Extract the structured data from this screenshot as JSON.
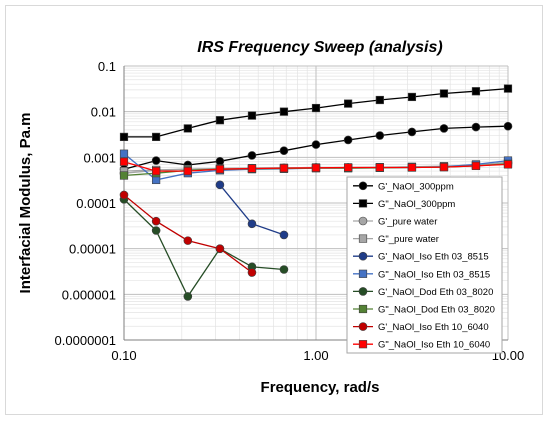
{
  "chart_data": {
    "type": "scatter",
    "title": "IRS Frequency Sweep (analysis)",
    "xlabel": "Frequency, rad/s",
    "ylabel": "Interfacial Modulus, Pa.m",
    "x_scale": "log",
    "y_scale": "log",
    "xlim": [
      0.1,
      10
    ],
    "ylim": [
      1e-07,
      0.1
    ],
    "x_ticks": [
      "0.10",
      "1.00",
      "10.00"
    ],
    "y_ticks": [
      "0.1",
      "0.01",
      "0.001",
      "0.0001",
      "0.00001",
      "0.000001",
      "0.0000001"
    ],
    "grid": true,
    "legend_position": "right-inside",
    "series": [
      {
        "name": "G'_NaOl_300ppm",
        "color": "#000000",
        "marker": "circle",
        "x": [
          0.1,
          0.147,
          0.215,
          0.316,
          0.464,
          0.681,
          1.0,
          1.47,
          2.15,
          3.16,
          4.64,
          6.81,
          10.0
        ],
        "y": [
          0.00055,
          0.00085,
          0.00068,
          0.00082,
          0.0011,
          0.0014,
          0.0019,
          0.0024,
          0.003,
          0.0036,
          0.0043,
          0.0046,
          0.0048
        ]
      },
      {
        "name": "G\"_NaOl_300ppm",
        "color": "#000000",
        "marker": "square",
        "x": [
          0.1,
          0.147,
          0.215,
          0.316,
          0.464,
          0.681,
          1.0,
          1.47,
          2.15,
          3.16,
          4.64,
          6.81,
          10.0
        ],
        "y": [
          0.0028,
          0.0028,
          0.0043,
          0.0065,
          0.0082,
          0.01,
          0.012,
          0.015,
          0.018,
          0.021,
          0.025,
          0.028,
          0.032
        ]
      },
      {
        "name": "G'_pure water",
        "color": "#a6a6a6",
        "marker": "circle",
        "x": [
          0.1,
          0.147,
          0.215,
          0.316,
          0.464,
          0.681,
          1.0,
          1.47,
          2.15,
          3.16,
          4.64,
          6.81,
          10.0
        ],
        "y": [
          0.00045,
          0.00052,
          0.00055,
          0.00057,
          0.00058,
          0.00059,
          0.0006,
          0.0006,
          0.0006,
          0.00061,
          0.00062,
          0.00066,
          0.00075
        ]
      },
      {
        "name": "G\"_pure water",
        "color": "#a6a6a6",
        "marker": "square",
        "x": [
          0.1,
          0.147,
          0.215,
          0.316,
          0.464,
          0.681,
          1.0,
          1.47,
          2.15,
          3.16,
          4.64,
          6.81,
          10.0
        ],
        "y": [
          0.0005,
          0.00053,
          0.00055,
          0.00057,
          0.00058,
          0.00059,
          0.0006,
          0.0006,
          0.00061,
          0.00062,
          0.00064,
          0.00068,
          0.00078
        ]
      },
      {
        "name": "G'_NaOl_Iso Eth 03_8515",
        "color": "#1f3c88",
        "marker": "circle",
        "x": [
          0.316,
          0.464,
          0.681
        ],
        "y": [
          0.00025,
          3.5e-05,
          2e-05
        ]
      },
      {
        "name": "G\"_NaOl_Iso Eth 03_8515",
        "color": "#4472c4",
        "marker": "square",
        "x": [
          0.1,
          0.147,
          0.215,
          0.316,
          0.464,
          0.681,
          1.0,
          1.47,
          2.15,
          3.16,
          4.64,
          6.81,
          10.0
        ],
        "y": [
          0.0012,
          0.00032,
          0.00045,
          0.00052,
          0.00055,
          0.00056,
          0.00058,
          0.00058,
          0.00059,
          0.0006,
          0.00062,
          0.0007,
          0.00085
        ]
      },
      {
        "name": "G'_NaOl_Dod Eth 03_8020",
        "color": "#264d26",
        "marker": "circle",
        "x": [
          0.1,
          0.147,
          0.215,
          0.316,
          0.464,
          0.681
        ],
        "y": [
          0.00012,
          2.5e-05,
          9e-07,
          1e-05,
          4e-06,
          3.5e-06
        ]
      },
      {
        "name": "G\"_NaOl_Dod Eth 03_8020",
        "color": "#548235",
        "marker": "square",
        "x": [
          0.1,
          0.147,
          0.215,
          0.316,
          0.464,
          0.681,
          1.0,
          1.47,
          2.15,
          3.16,
          4.64,
          6.81,
          10.0
        ],
        "y": [
          0.0004,
          0.00045,
          0.00052,
          0.00055,
          0.00056,
          0.00057,
          0.00058,
          0.00058,
          0.00059,
          0.0006,
          0.00061,
          0.00065,
          0.00072
        ]
      },
      {
        "name": "G'_NaOl_Iso Eth 10_6040",
        "color": "#c00000",
        "marker": "circle",
        "x": [
          0.1,
          0.147,
          0.215,
          0.316,
          0.464
        ],
        "y": [
          0.00015,
          4e-05,
          1.5e-05,
          1e-05,
          3e-06
        ]
      },
      {
        "name": "G\"_NaOl_Iso Eth 10_6040",
        "color": "#ff0000",
        "marker": "square",
        "x": [
          0.1,
          0.147,
          0.215,
          0.316,
          0.464,
          0.681,
          1.0,
          1.47,
          2.15,
          3.16,
          4.64,
          6.81,
          10.0
        ],
        "y": [
          0.0008,
          0.0005,
          0.0005,
          0.00055,
          0.00057,
          0.00058,
          0.00059,
          0.0006,
          0.0006,
          0.0006,
          0.00061,
          0.00065,
          0.0007
        ]
      }
    ]
  }
}
